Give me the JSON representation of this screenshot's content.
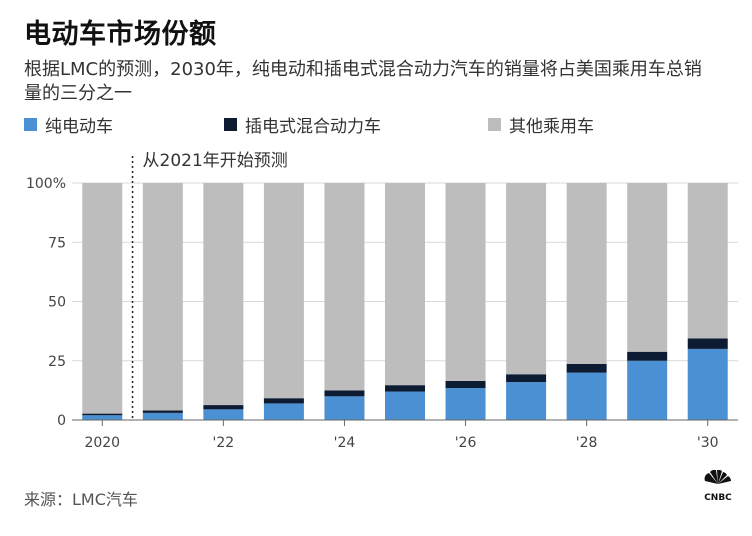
{
  "header": {
    "title": "电动车市场份额",
    "subtitle": "根据LMC的预测，2030年，纯电动和插电式混合动力汽车的销量将占美国乘用车总销量的三分之一"
  },
  "legend": [
    {
      "label": "纯电动车",
      "color": "#4a90d2"
    },
    {
      "label": "插电式混合动力车",
      "color": "#0d1b33"
    },
    {
      "label": "其他乘用车",
      "color": "#bdbdbd"
    }
  ],
  "annotation": "从2021年开始预测",
  "source": "来源：LMC汽车",
  "logo": "CNBC",
  "chart_data": {
    "type": "bar",
    "stacked": true,
    "categories": [
      "2020",
      "2021",
      "'22",
      "2023",
      "'24",
      "2025",
      "'26",
      "2027",
      "'28",
      "2029",
      "'30"
    ],
    "x_tick_labels": [
      "2020",
      "",
      "'22",
      "",
      "'24",
      "",
      "'26",
      "",
      "'28",
      "",
      "'30"
    ],
    "series": [
      {
        "name": "纯电动车",
        "color": "#4a90d2",
        "values": [
          2,
          3,
          4.5,
          7,
          10,
          12,
          13.5,
          16,
          20,
          25,
          30
        ]
      },
      {
        "name": "插电式混合动力车",
        "color": "#0d1b33",
        "values": [
          0.7,
          1,
          1.8,
          2.2,
          2.5,
          2.7,
          3,
          3.3,
          3.7,
          3.8,
          4.4
        ]
      },
      {
        "name": "其他乘用车",
        "color": "#bdbdbd",
        "values": [
          97.3,
          96,
          93.7,
          90.8,
          87.5,
          85.3,
          83.5,
          80.7,
          76.3,
          71.2,
          65.6
        ]
      }
    ],
    "y_ticks": [
      "0",
      "25",
      "50",
      "75",
      "100%"
    ],
    "ylim": [
      0,
      100
    ],
    "forecast_start": "2021"
  }
}
